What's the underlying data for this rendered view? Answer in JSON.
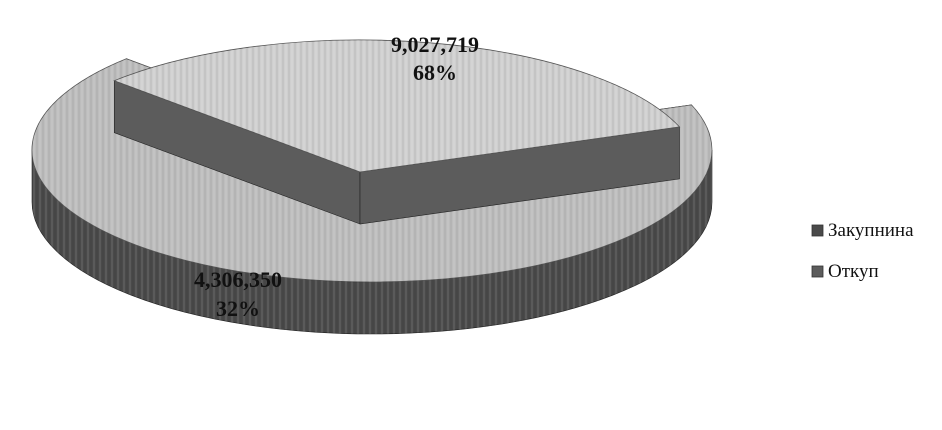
{
  "chart_data": {
    "type": "pie",
    "style": "3d-exploded",
    "title": "",
    "slices": [
      {
        "name": "Закупнина",
        "value": 9027719,
        "value_label": "9,027,719",
        "percent_label": "68%",
        "color": "#bdbdbd",
        "side_color": "#4a4a4a"
      },
      {
        "name": "Откуп",
        "value": 4306350,
        "value_label": "4,306,350",
        "percent_label": "32%",
        "color": "#cfcfcf",
        "side_color": "#5c5c5c"
      }
    ],
    "legend": {
      "position": "right",
      "entries": [
        "Закупнина",
        "Откуп"
      ]
    }
  }
}
